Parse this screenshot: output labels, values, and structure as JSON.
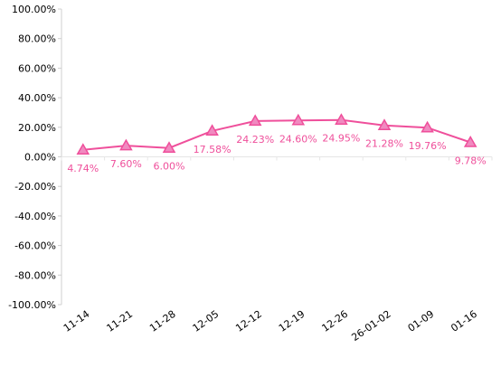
{
  "chart_data": {
    "type": "line",
    "categories": [
      "11-14",
      "11-21",
      "11-28",
      "12-05",
      "12-12",
      "12-19",
      "12-26",
      "26-01-02",
      "01-09",
      "01-16"
    ],
    "series": [
      {
        "values": [
          4.74,
          7.6,
          6.0,
          17.58,
          24.23,
          24.6,
          24.95,
          21.28,
          19.76,
          9.78
        ],
        "labels": [
          "4.74%",
          "7.60%",
          "6.00%",
          "17.58%",
          "24.23%",
          "24.60%",
          "24.95%",
          "21.28%",
          "19.76%",
          "9.78%"
        ],
        "color": "#ef4f9b",
        "marker": "triangle"
      }
    ],
    "ylim": [
      -100,
      100
    ],
    "yticks": [
      -100,
      -80,
      -60,
      -40,
      -20,
      0,
      20,
      40,
      60,
      80,
      100
    ],
    "ytick_labels": [
      "-100.00%",
      "-80.00%",
      "-60.00%",
      "-40.00%",
      "-20.00%",
      "0.00%",
      "20.00%",
      "40.00%",
      "60.00%",
      "80.00%",
      "100.00%"
    ],
    "grid": false,
    "legend": "none",
    "title": "",
    "xlabel": "",
    "ylabel": ""
  },
  "colors": {
    "series": "#ef4f9b",
    "marker_fill": "#f08ac0",
    "axis": "#cfcfcf",
    "tick_text": "#000000",
    "zero_tick": "#e6e6e6"
  }
}
